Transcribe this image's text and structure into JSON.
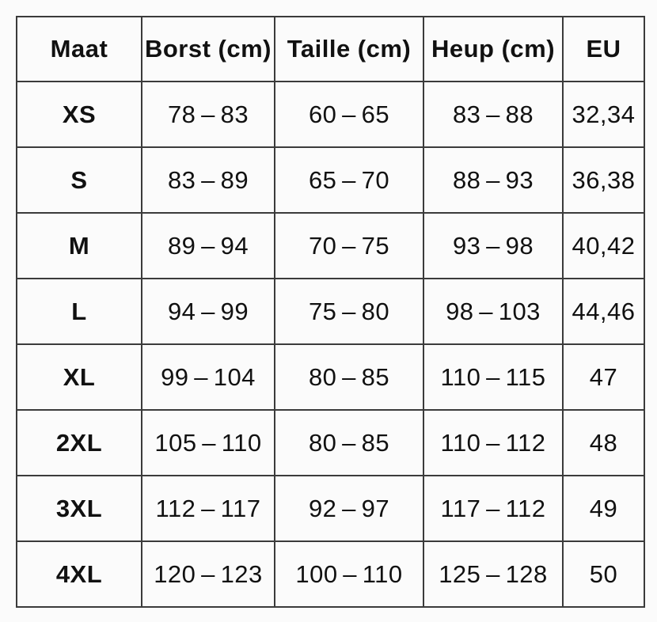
{
  "chart_data": {
    "type": "table",
    "columns": [
      "Maat",
      "Borst (cm)",
      "Taille (cm)",
      "Heup (cm)",
      "EU"
    ],
    "rows": [
      [
        "XS",
        "78 – 83",
        "60 – 65",
        "83 – 88",
        "32,34"
      ],
      [
        "S",
        "83 – 89",
        "65 – 70",
        "88 – 93",
        "36,38"
      ],
      [
        "M",
        "89 – 94",
        "70 – 75",
        "93 – 98",
        "40,42"
      ],
      [
        "L",
        "94 – 99",
        "75 – 80",
        "98 – 103",
        "44,46"
      ],
      [
        "XL",
        "99 – 104",
        "80 – 85",
        "110 – 115",
        "47"
      ],
      [
        "2XL",
        "105 – 110",
        "80 – 85",
        "110 – 112",
        "48"
      ],
      [
        "3XL",
        "112 – 117",
        "92 – 97",
        "117 – 112",
        "49"
      ],
      [
        "4XL",
        "120 – 123",
        "100 – 110",
        "125 – 128",
        "50"
      ]
    ],
    "layout": {
      "grid": "on",
      "header_row": true,
      "bold_first_column": true
    }
  },
  "colors": {
    "background": "#fbfbfb",
    "grid_line": "#3b3b3b",
    "text": "#111111"
  }
}
